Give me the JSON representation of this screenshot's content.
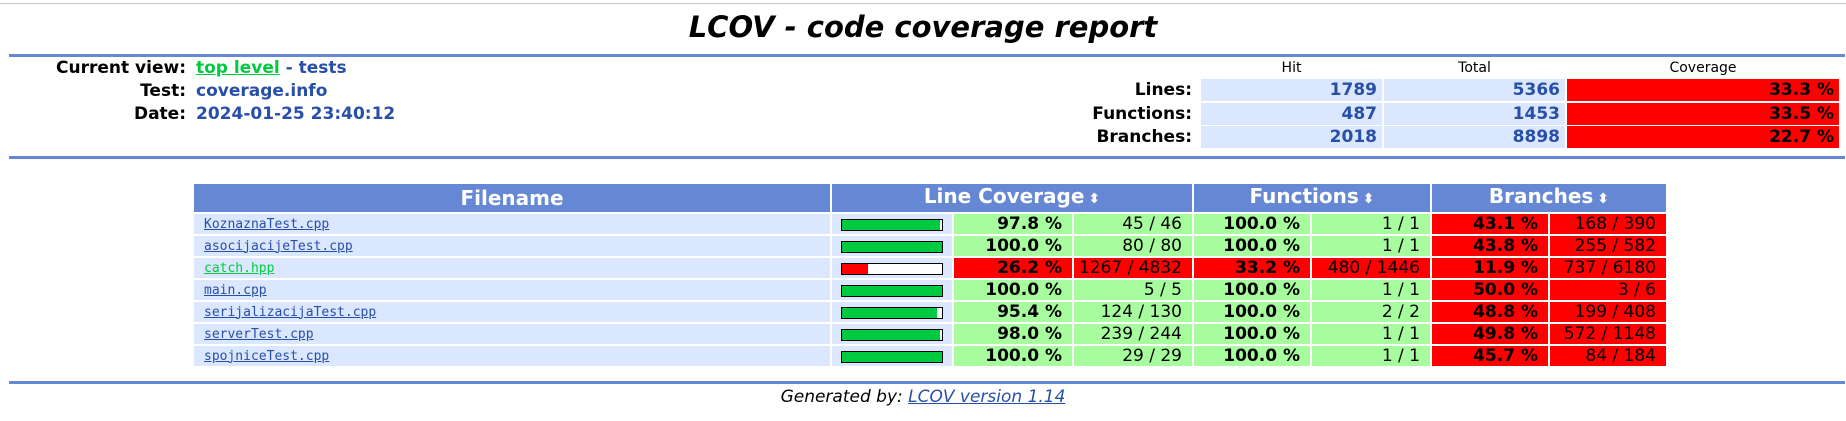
{
  "title": "LCOV - code coverage report",
  "header": {
    "current_view_label": "Current view:",
    "current_view_link": "top level",
    "current_view_sep": " - ",
    "current_view_dir": "tests",
    "test_label": "Test:",
    "test_value": "coverage.info",
    "date_label": "Date:",
    "date_value": "2024-01-25 23:40:12"
  },
  "summary": {
    "col_hit": "Hit",
    "col_total": "Total",
    "col_coverage": "Coverage",
    "rows": [
      {
        "label": "Lines:",
        "hit": "1789",
        "total": "5366",
        "coverage": "33.3 %"
      },
      {
        "label": "Functions:",
        "hit": "487",
        "total": "1453",
        "coverage": "33.5 %"
      },
      {
        "label": "Branches:",
        "hit": "2018",
        "total": "8898",
        "coverage": "22.7 %"
      }
    ]
  },
  "table": {
    "col_filename": "Filename",
    "col_line": "Line Coverage",
    "col_functions": "Functions",
    "col_branches": "Branches",
    "sort_icon": "⬍",
    "rows": [
      {
        "file": "KoznaznaTest.cpp",
        "bar_fraction": 0.978,
        "bar_color": "#00cb40",
        "line_pct": "97.8 %",
        "line_cnt": "45 / 46",
        "line_class": "hi",
        "fn_pct": "100.0 %",
        "fn_cnt": "1 / 1",
        "fn_class": "hi",
        "br_pct": "43.1 %",
        "br_cnt": "168 / 390",
        "br_class": "red",
        "file_class": ""
      },
      {
        "file": "asocijacijeTest.cpp",
        "bar_fraction": 1.0,
        "bar_color": "#00cb40",
        "line_pct": "100.0 %",
        "line_cnt": "80 / 80",
        "line_class": "hi",
        "fn_pct": "100.0 %",
        "fn_cnt": "1 / 1",
        "fn_class": "hi",
        "br_pct": "43.8 %",
        "br_cnt": "255 / 582",
        "br_class": "red",
        "file_class": ""
      },
      {
        "file": "catch.hpp",
        "bar_fraction": 0.262,
        "bar_color": "#ff0000",
        "line_pct": "26.2 %",
        "line_cnt": "1267 / 4832",
        "line_class": "red",
        "fn_pct": "33.2 %",
        "fn_cnt": "480 / 1446",
        "fn_class": "red",
        "br_pct": "11.9 %",
        "br_cnt": "737 / 6180",
        "br_class": "red",
        "file_class": "lowlink"
      },
      {
        "file": "main.cpp",
        "bar_fraction": 1.0,
        "bar_color": "#00cb40",
        "line_pct": "100.0 %",
        "line_cnt": "5 / 5",
        "line_class": "hi",
        "fn_pct": "100.0 %",
        "fn_cnt": "1 / 1",
        "fn_class": "hi",
        "br_pct": "50.0 %",
        "br_cnt": "3 / 6",
        "br_class": "red",
        "file_class": ""
      },
      {
        "file": "serijalizacijaTest.cpp",
        "bar_fraction": 0.954,
        "bar_color": "#00cb40",
        "line_pct": "95.4 %",
        "line_cnt": "124 / 130",
        "line_class": "hi",
        "fn_pct": "100.0 %",
        "fn_cnt": "2 / 2",
        "fn_class": "hi",
        "br_pct": "48.8 %",
        "br_cnt": "199 / 408",
        "br_class": "red",
        "file_class": ""
      },
      {
        "file": "serverTest.cpp",
        "bar_fraction": 0.98,
        "bar_color": "#00cb40",
        "line_pct": "98.0 %",
        "line_cnt": "239 / 244",
        "line_class": "hi",
        "fn_pct": "100.0 %",
        "fn_cnt": "1 / 1",
        "fn_class": "hi",
        "br_pct": "49.8 %",
        "br_cnt": "572 / 1148",
        "br_class": "red",
        "file_class": ""
      },
      {
        "file": "spojniceTest.cpp",
        "bar_fraction": 1.0,
        "bar_color": "#00cb40",
        "line_pct": "100.0 %",
        "line_cnt": "29 / 29",
        "line_class": "hi",
        "fn_pct": "100.0 %",
        "fn_cnt": "1 / 1",
        "fn_class": "hi",
        "br_pct": "45.7 %",
        "br_cnt": "84 / 184",
        "br_class": "red",
        "file_class": ""
      }
    ]
  },
  "footer": {
    "prefix": "Generated by: ",
    "link": "LCOV version 1.14"
  }
}
